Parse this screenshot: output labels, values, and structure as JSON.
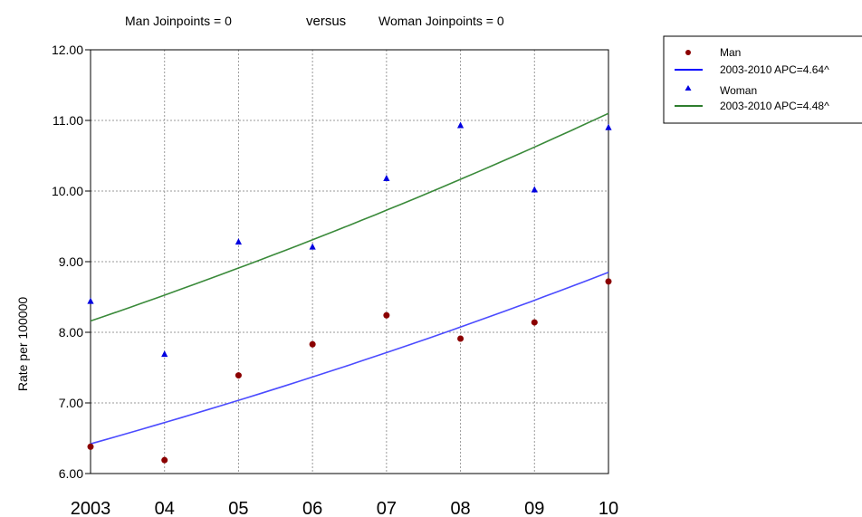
{
  "chart_data": {
    "type": "scatter",
    "title_parts": [
      "Man Joinpoints = 0",
      "versus",
      "Woman Joinpoints = 0"
    ],
    "ylabel": "Rate per 100000",
    "xlabel": "",
    "x_tick_labels": [
      "2003",
      "04",
      "05",
      "06",
      "07",
      "08",
      "09",
      "10"
    ],
    "y_tick_labels": [
      "6.00",
      "7.00",
      "8.00",
      "9.00",
      "10.00",
      "11.00",
      "12.00"
    ],
    "x": [
      2003,
      2004,
      2005,
      2006,
      2007,
      2008,
      2009,
      2010
    ],
    "xlim": [
      2003,
      2010
    ],
    "ylim": [
      6,
      12
    ],
    "grid": true,
    "legend_position": "top-right",
    "series": [
      {
        "name": "Man",
        "marker": "circle",
        "color": "#8b0000",
        "values": [
          6.38,
          6.19,
          7.39,
          7.83,
          8.24,
          7.91,
          8.14,
          8.72
        ],
        "trend": {
          "label": "2003-2010 APC=4.64^",
          "color": "#4b4bff",
          "start": 6.42,
          "end": 8.85
        }
      },
      {
        "name": "Woman",
        "marker": "triangle",
        "color": "#0000e0",
        "values": [
          8.44,
          7.69,
          9.28,
          9.21,
          10.18,
          10.93,
          10.02,
          10.9
        ],
        "trend": {
          "label": "2003-2010 APC=4.48^",
          "color": "#3a8a3a",
          "start": 8.16,
          "end": 11.1
        }
      }
    ]
  }
}
